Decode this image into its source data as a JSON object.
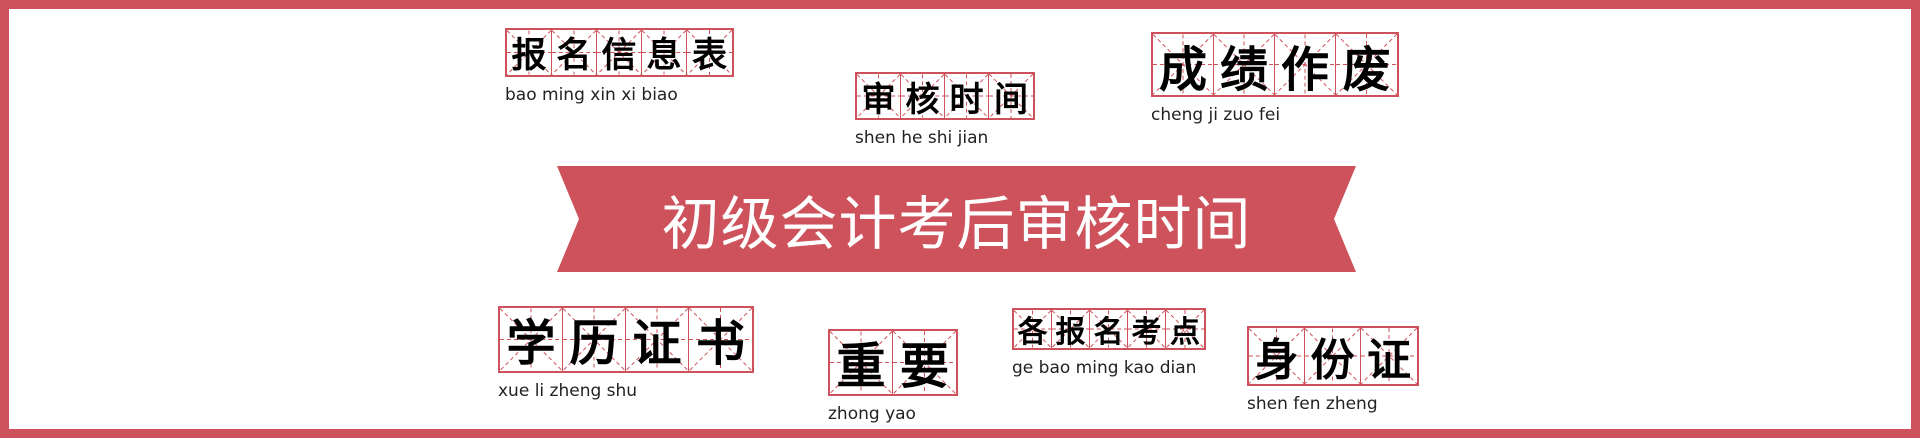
{
  "theme": {
    "accent": "#cd525b",
    "text": "#000000",
    "banner_text": "#ffffff"
  },
  "banner": {
    "title": "初级会计考后审核时间"
  },
  "words": [
    {
      "id": "baomingxinxibiao",
      "chars": [
        "报",
        "名",
        "信",
        "息",
        "表"
      ],
      "pinyin": "bao ming xin xi biao"
    },
    {
      "id": "shenheshijian",
      "chars": [
        "审",
        "核",
        "时",
        "间"
      ],
      "pinyin": "shen he shi jian"
    },
    {
      "id": "chengjizuofei",
      "chars": [
        "成",
        "绩",
        "作",
        "废"
      ],
      "pinyin": "cheng ji zuo fei"
    },
    {
      "id": "xuelizhengshu",
      "chars": [
        "学",
        "历",
        "证",
        "书"
      ],
      "pinyin": "xue li zheng shu"
    },
    {
      "id": "zhongyao",
      "chars": [
        "重",
        "要"
      ],
      "pinyin": "zhong yao"
    },
    {
      "id": "gebaomingkaodian",
      "chars": [
        "各",
        "报",
        "名",
        "考",
        "点"
      ],
      "pinyin": "ge bao ming kao dian"
    },
    {
      "id": "shenfenzheng",
      "chars": [
        "身",
        "份",
        "证"
      ],
      "pinyin": "shen fen zheng"
    }
  ]
}
